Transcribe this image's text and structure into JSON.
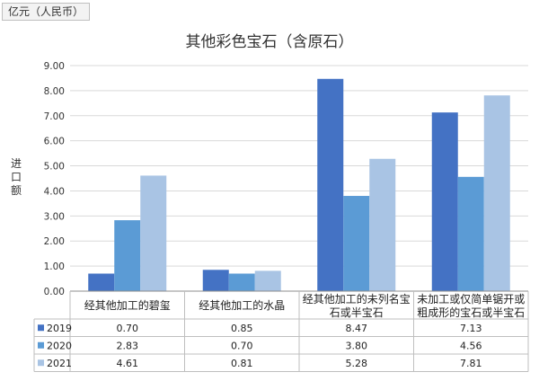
{
  "unit_label": "亿元（人民币）",
  "chart_data": {
    "type": "bar",
    "title": "其他彩色宝石（含原石）",
    "ylabel": "进口额",
    "ylim": [
      0,
      9
    ],
    "yticks": [
      "0.00",
      "1.00",
      "2.00",
      "3.00",
      "4.00",
      "5.00",
      "6.00",
      "7.00",
      "8.00",
      "9.00"
    ],
    "grid": true,
    "legend": "data-table",
    "categories": [
      [
        "经其他加工的碧玺"
      ],
      [
        "经其他加工的水晶"
      ],
      [
        "经其他加工的未列名宝",
        "石或半宝石"
      ],
      [
        "未加工或仅简单锯开或",
        "粗成形的宝石或半宝石"
      ]
    ],
    "series": [
      {
        "name": "2019",
        "color": "#4472c4",
        "values": [
          0.7,
          0.85,
          8.47,
          7.13
        ],
        "labels": [
          "0.70",
          "0.85",
          "8.47",
          "7.13"
        ]
      },
      {
        "name": "2020",
        "color": "#5b9bd5",
        "values": [
          2.83,
          0.7,
          3.8,
          4.56
        ],
        "labels": [
          "2.83",
          "0.70",
          "3.80",
          "4.56"
        ]
      },
      {
        "name": "2021",
        "color": "#a9c4e4",
        "values": [
          4.61,
          0.81,
          5.28,
          7.81
        ],
        "labels": [
          "4.61",
          "0.81",
          "5.28",
          "7.81"
        ]
      }
    ]
  }
}
